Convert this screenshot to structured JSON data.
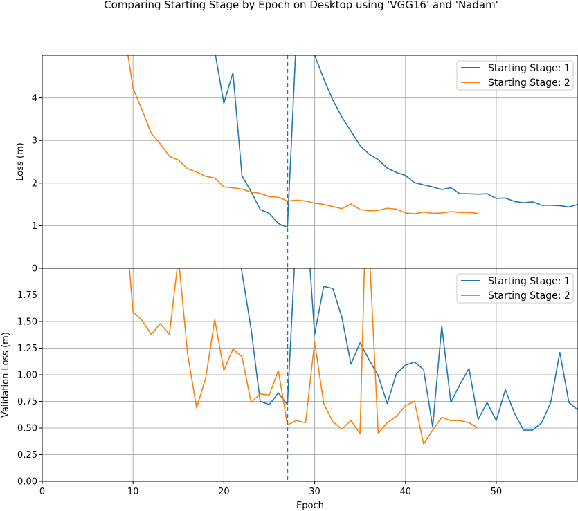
{
  "figure": {
    "title": "Comparing Starting Stage by Epoch on Desktop using 'VGG16' and 'Nadam'"
  },
  "colors": {
    "series1": "#1f77b4",
    "series2": "#ff7f0e",
    "grid": "#b0b0b0",
    "vline": "#1f77b4"
  },
  "chart_data": [
    {
      "type": "line",
      "ylabel": "Loss (m)",
      "xlim": [
        0,
        59
      ],
      "ylim": [
        0,
        5
      ],
      "yticks": [
        0,
        1,
        2,
        3,
        4
      ],
      "ytick_labels": [
        "0",
        "1",
        "2",
        "3",
        "4"
      ],
      "grid": true,
      "legend_position": "top-right",
      "vline_x": 27,
      "series": [
        {
          "name": "Starting Stage: 1",
          "x": [
            19,
            20,
            21,
            22,
            23,
            24,
            25,
            26,
            27,
            28,
            29,
            30,
            31,
            32,
            33,
            34,
            35,
            36,
            37,
            38,
            39,
            40,
            41,
            42,
            43,
            44,
            45,
            46,
            47,
            48,
            49,
            50,
            51,
            52,
            53,
            54,
            55,
            56,
            57,
            58,
            59
          ],
          "values": [
            5.1,
            3.87,
            4.59,
            2.17,
            1.8,
            1.38,
            1.29,
            1.05,
            0.96,
            5.5,
            5.8,
            5.0,
            4.45,
            3.95,
            3.55,
            3.22,
            2.88,
            2.68,
            2.55,
            2.35,
            2.25,
            2.18,
            2.01,
            1.96,
            1.91,
            1.85,
            1.89,
            1.75,
            1.75,
            1.74,
            1.75,
            1.64,
            1.65,
            1.57,
            1.54,
            1.56,
            1.48,
            1.48,
            1.47,
            1.44,
            1.5
          ]
        },
        {
          "name": "Starting Stage: 2",
          "x": [
            9,
            10,
            11,
            12,
            13,
            14,
            15,
            16,
            17,
            18,
            19,
            20,
            21,
            22,
            23,
            24,
            25,
            26,
            27,
            28,
            29,
            30,
            31,
            32,
            33,
            34,
            35,
            36,
            37,
            38,
            39,
            40,
            41,
            42,
            43,
            44,
            45,
            46,
            47,
            48
          ],
          "values": [
            5.6,
            4.23,
            3.71,
            3.17,
            2.92,
            2.63,
            2.54,
            2.34,
            2.26,
            2.16,
            2.12,
            1.91,
            1.89,
            1.86,
            1.79,
            1.76,
            1.68,
            1.67,
            1.58,
            1.6,
            1.58,
            1.53,
            1.5,
            1.45,
            1.4,
            1.51,
            1.38,
            1.35,
            1.36,
            1.41,
            1.39,
            1.3,
            1.28,
            1.32,
            1.29,
            1.3,
            1.33,
            1.31,
            1.31,
            1.29
          ]
        }
      ]
    },
    {
      "type": "line",
      "ylabel": "Validation Loss (m)",
      "xlabel": "Epoch",
      "xlim": [
        0,
        59
      ],
      "ylim": [
        0,
        2
      ],
      "xticks": [
        0,
        10,
        20,
        30,
        40,
        50
      ],
      "xtick_labels": [
        "0",
        "10",
        "20",
        "30",
        "40",
        "50"
      ],
      "yticks": [
        0,
        0.25,
        0.5,
        0.75,
        1.0,
        1.25,
        1.5,
        1.75
      ],
      "ytick_labels": [
        "0.00",
        "0.25",
        "0.50",
        "0.75",
        "1.00",
        "1.25",
        "1.50",
        "1.75"
      ],
      "grid": true,
      "legend_position": "top-right",
      "vline_x": 27,
      "series": [
        {
          "name": "Starting Stage: 1",
          "x": [
            21.5,
            22,
            23,
            24,
            25,
            26,
            27,
            28,
            29,
            30,
            31,
            32,
            33,
            34,
            35,
            36,
            37,
            38,
            39,
            40,
            41,
            42,
            43,
            44,
            45,
            46,
            47,
            48,
            49,
            50,
            51,
            52,
            53,
            54,
            55,
            56,
            57,
            58,
            59
          ],
          "values": [
            2.3,
            1.96,
            1.43,
            0.75,
            0.72,
            0.83,
            0.72,
            2.4,
            2.6,
            1.38,
            1.83,
            1.81,
            1.54,
            1.1,
            1.3,
            1.14,
            0.99,
            0.73,
            1.01,
            1.09,
            1.12,
            1.05,
            0.51,
            1.46,
            0.74,
            0.91,
            1.06,
            0.58,
            0.74,
            0.57,
            0.86,
            0.64,
            0.48,
            0.48,
            0.55,
            0.74,
            1.21,
            0.74,
            0.67
          ]
        },
        {
          "name": "Starting Stage: 2",
          "x": [
            9,
            10,
            11,
            12,
            13,
            14,
            15,
            16,
            17,
            18,
            19,
            20,
            21,
            22,
            23,
            24,
            25,
            26,
            27,
            28,
            29,
            30,
            31,
            32,
            33,
            34,
            35,
            35.6,
            36,
            37,
            38,
            39,
            40,
            41,
            42,
            43,
            44,
            45,
            46,
            47,
            48
          ],
          "values": [
            2.6,
            1.59,
            1.51,
            1.38,
            1.48,
            1.38,
            2.1,
            1.2,
            0.69,
            0.97,
            1.52,
            1.04,
            1.24,
            1.17,
            0.74,
            0.82,
            0.81,
            1.04,
            0.53,
            0.57,
            0.55,
            1.31,
            0.73,
            0.56,
            0.49,
            0.57,
            0.45,
            2.4,
            2.2,
            0.45,
            0.55,
            0.61,
            0.71,
            0.75,
            0.35,
            0.48,
            0.6,
            0.57,
            0.57,
            0.55,
            0.5
          ]
        }
      ]
    }
  ]
}
